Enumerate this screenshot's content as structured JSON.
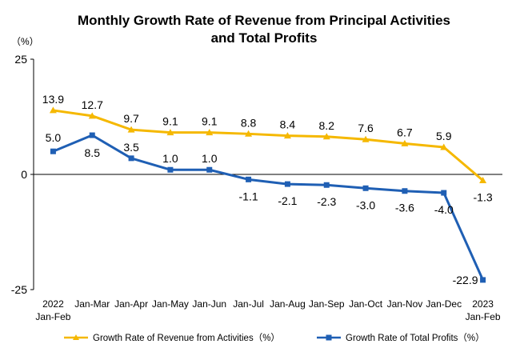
{
  "chart_data": {
    "type": "line",
    "title_line1": "Monthly Growth Rate of Revenue from Principal Activities",
    "title_line2": "and Total Profits",
    "y_unit": "（%）",
    "ylim": [
      -25,
      25
    ],
    "yticks": [
      {
        "value": 25,
        "label": "25"
      },
      {
        "value": 0,
        "label": "0"
      },
      {
        "value": -25,
        "label": "-25"
      }
    ],
    "categories": [
      {
        "line1": "2022",
        "line2": "Jan-Feb"
      },
      {
        "line1": "Jan-Mar",
        "line2": ""
      },
      {
        "line1": "Jan-Apr",
        "line2": ""
      },
      {
        "line1": "Jan-May",
        "line2": ""
      },
      {
        "line1": "Jan-Jun",
        "line2": ""
      },
      {
        "line1": "Jan-Jul",
        "line2": ""
      },
      {
        "line1": "Jan-Aug",
        "line2": ""
      },
      {
        "line1": "Jan-Sep",
        "line2": ""
      },
      {
        "line1": "Jan-Oct",
        "line2": ""
      },
      {
        "line1": "Jan-Nov",
        "line2": ""
      },
      {
        "line1": "Jan-Dec",
        "line2": ""
      },
      {
        "line1": "2023",
        "line2": "Jan-Feb"
      }
    ],
    "series": [
      {
        "name": "Growth Rate of Revenue from Activities（%）",
        "color": "#f5b800",
        "marker": "triangle",
        "values": [
          13.9,
          12.7,
          9.7,
          9.1,
          9.1,
          8.8,
          8.4,
          8.2,
          7.6,
          6.7,
          5.9,
          -1.3
        ],
        "labels": [
          "13.9",
          "12.7",
          "9.7",
          "9.1",
          "9.1",
          "8.8",
          "8.4",
          "8.2",
          "7.6",
          "6.7",
          "5.9",
          "-1.3"
        ]
      },
      {
        "name": "Growth Rate of Total Profits（%）",
        "color": "#1f5fb4",
        "marker": "square",
        "values": [
          5.0,
          8.5,
          3.5,
          1.0,
          1.0,
          -1.1,
          -2.1,
          -2.3,
          -3.0,
          -3.6,
          -4.0,
          -22.9
        ],
        "labels": [
          "5.0",
          "8.5",
          "3.5",
          "1.0",
          "1.0",
          "-1.1",
          "-2.1",
          "-2.3",
          "-3.0",
          "-3.6",
          "-4.0",
          "-22.9"
        ]
      }
    ],
    "grid": false,
    "legend_position": "bottom"
  }
}
